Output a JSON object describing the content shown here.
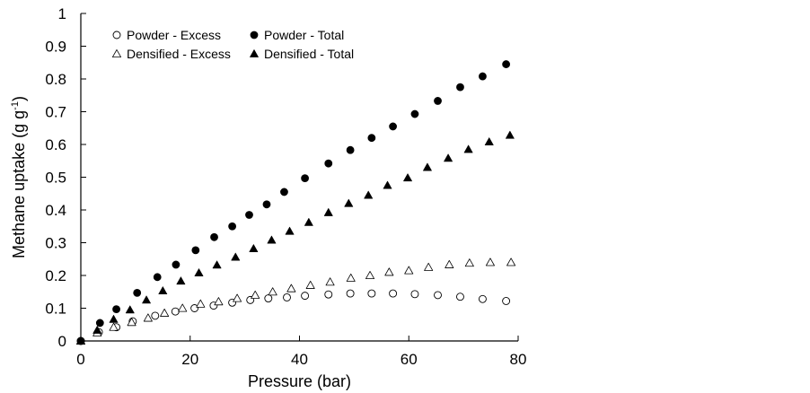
{
  "chart_data": {
    "type": "scatter",
    "xlabel": "Pressure (bar)",
    "ylabel": {
      "text": "Methane uptake (g g",
      "sup": "-1",
      "end": ")"
    },
    "xlim": [
      0,
      80
    ],
    "ylim": [
      0,
      1
    ],
    "xticks": [
      0,
      20,
      40,
      60,
      80
    ],
    "yticks": [
      0,
      0.1,
      0.2,
      0.3,
      0.4,
      0.5,
      0.6,
      0.7,
      0.8,
      0.9,
      1
    ],
    "ytick_labels": [
      "0",
      "0.1",
      "0.2",
      "0.3",
      "0.4",
      "0.5",
      "0.6",
      "0.7",
      "0.8",
      "0.9",
      "1"
    ],
    "grid": false,
    "legend_position": "top-left",
    "series": [
      {
        "name": "Powder - Excess",
        "marker": "circle",
        "filled": false,
        "x": [
          0,
          3.3,
          6.5,
          9.5,
          13.6,
          17.3,
          20.8,
          24.3,
          27.7,
          31.0,
          34.3,
          37.7,
          41.0,
          45.3,
          49.3,
          53.2,
          57.1,
          61.1,
          65.3,
          69.4,
          73.5,
          77.8
        ],
        "y": [
          0,
          0.027,
          0.042,
          0.06,
          0.077,
          0.09,
          0.1,
          0.108,
          0.117,
          0.125,
          0.13,
          0.133,
          0.138,
          0.142,
          0.145,
          0.145,
          0.145,
          0.143,
          0.14,
          0.135,
          0.128,
          0.122
        ]
      },
      {
        "name": "Powder - Total",
        "marker": "circle",
        "filled": true,
        "x": [
          0,
          3.5,
          6.5,
          10.3,
          14.0,
          17.4,
          21.0,
          24.4,
          27.7,
          30.8,
          34.0,
          37.2,
          41.0,
          45.3,
          49.3,
          53.2,
          57.1,
          61.1,
          65.3,
          69.4,
          73.5,
          77.8
        ],
        "y": [
          0,
          0.055,
          0.097,
          0.147,
          0.195,
          0.233,
          0.277,
          0.317,
          0.35,
          0.385,
          0.417,
          0.455,
          0.497,
          0.542,
          0.583,
          0.62,
          0.655,
          0.693,
          0.733,
          0.775,
          0.808,
          0.845
        ]
      },
      {
        "name": "Densified - Excess",
        "marker": "triangle",
        "filled": false,
        "x": [
          0,
          3.0,
          6.0,
          9.3,
          12.3,
          15.3,
          18.6,
          21.9,
          25.2,
          28.6,
          31.9,
          35.1,
          38.5,
          42.0,
          45.6,
          49.4,
          52.9,
          56.4,
          60.0,
          63.6,
          67.4,
          71.1,
          74.9,
          78.7
        ],
        "y": [
          0,
          0.025,
          0.042,
          0.057,
          0.07,
          0.085,
          0.1,
          0.113,
          0.12,
          0.13,
          0.14,
          0.15,
          0.16,
          0.17,
          0.18,
          0.192,
          0.2,
          0.21,
          0.215,
          0.225,
          0.233,
          0.238,
          0.24,
          0.24
        ]
      },
      {
        "name": "Densified - Total",
        "marker": "triangle",
        "filled": true,
        "x": [
          0,
          3.0,
          6.0,
          9.0,
          12.0,
          15.0,
          18.3,
          21.6,
          24.9,
          28.3,
          31.6,
          34.9,
          38.2,
          41.7,
          45.3,
          49.0,
          52.6,
          56.1,
          59.8,
          63.4,
          67.2,
          70.9,
          74.7,
          78.5
        ],
        "y": [
          0,
          0.033,
          0.066,
          0.095,
          0.125,
          0.153,
          0.183,
          0.208,
          0.232,
          0.256,
          0.282,
          0.308,
          0.335,
          0.362,
          0.392,
          0.42,
          0.445,
          0.475,
          0.498,
          0.53,
          0.558,
          0.585,
          0.608,
          0.628
        ]
      }
    ]
  }
}
